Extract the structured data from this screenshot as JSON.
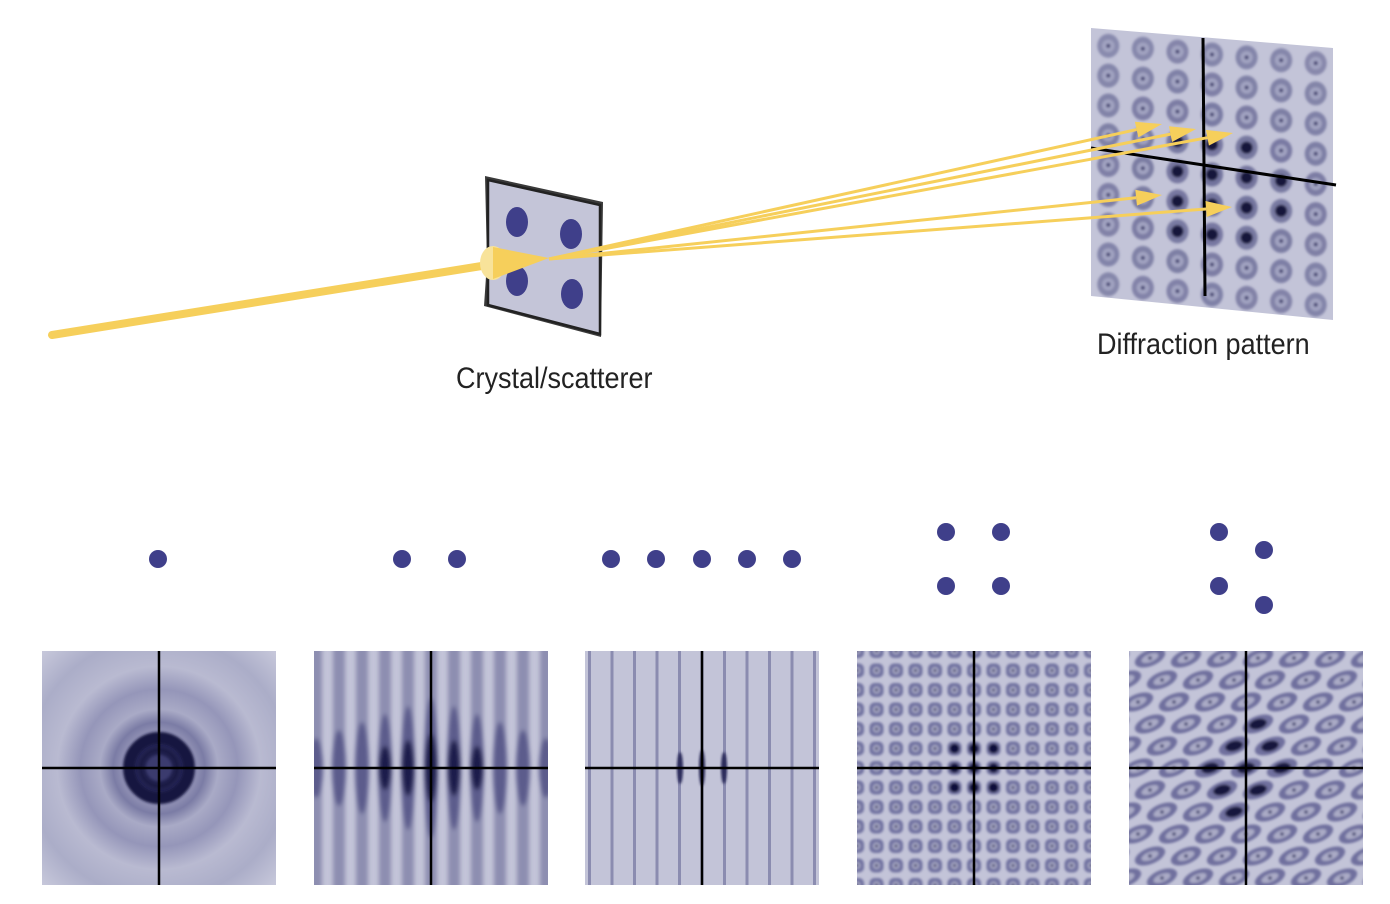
{
  "labels": {
    "crystal": "Crystal/scatterer",
    "diffraction": "Diffraction pattern"
  },
  "colors": {
    "beam": "#f6cf5b",
    "beam_light": "#f8e39a",
    "atom": "#3f3f8a",
    "pattern_bg": "#c3c4d8",
    "pattern_dark": "#1f1f4e",
    "axis": "#000000"
  },
  "scatterer": {
    "atoms": 4
  },
  "examples": [
    {
      "name": "single-atom",
      "atoms": 1,
      "pattern": "rings"
    },
    {
      "name": "two-atoms",
      "atoms": 2,
      "pattern": "fringes"
    },
    {
      "name": "five-atom-row",
      "atoms": 5,
      "pattern": "sharp-fringes"
    },
    {
      "name": "square-lattice",
      "atoms": 4,
      "pattern": "square-grid"
    },
    {
      "name": "oblique-lattice",
      "atoms": 4,
      "pattern": "oblique-grid"
    }
  ]
}
